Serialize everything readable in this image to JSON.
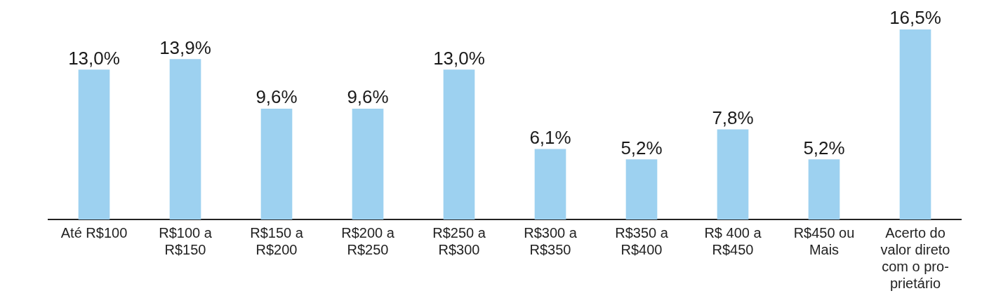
{
  "chart_data": {
    "type": "bar",
    "categories": [
      "Até R$100",
      "R$100 a R$150",
      "R$150 a R$200",
      "R$200 a R$250",
      "R$250 a R$300",
      "R$300 a R$350",
      "R$350 a R$400",
      "R$ 400 a R$450",
      "R$450 ou Mais",
      "Acerto do valor direto com o pro-prietário"
    ],
    "values": [
      13.0,
      13.9,
      9.6,
      9.6,
      13.0,
      6.1,
      5.2,
      7.8,
      5.2,
      16.5
    ],
    "value_labels": [
      "13,0%",
      "13,9%",
      "9,6%",
      "9,6%",
      "13,0%",
      "6,1%",
      "5,2%",
      "7,8%",
      "5,2%",
      "16,5%"
    ],
    "color": "#9dd1f0",
    "grid": false,
    "legend": false,
    "tick_labels": "x"
  }
}
